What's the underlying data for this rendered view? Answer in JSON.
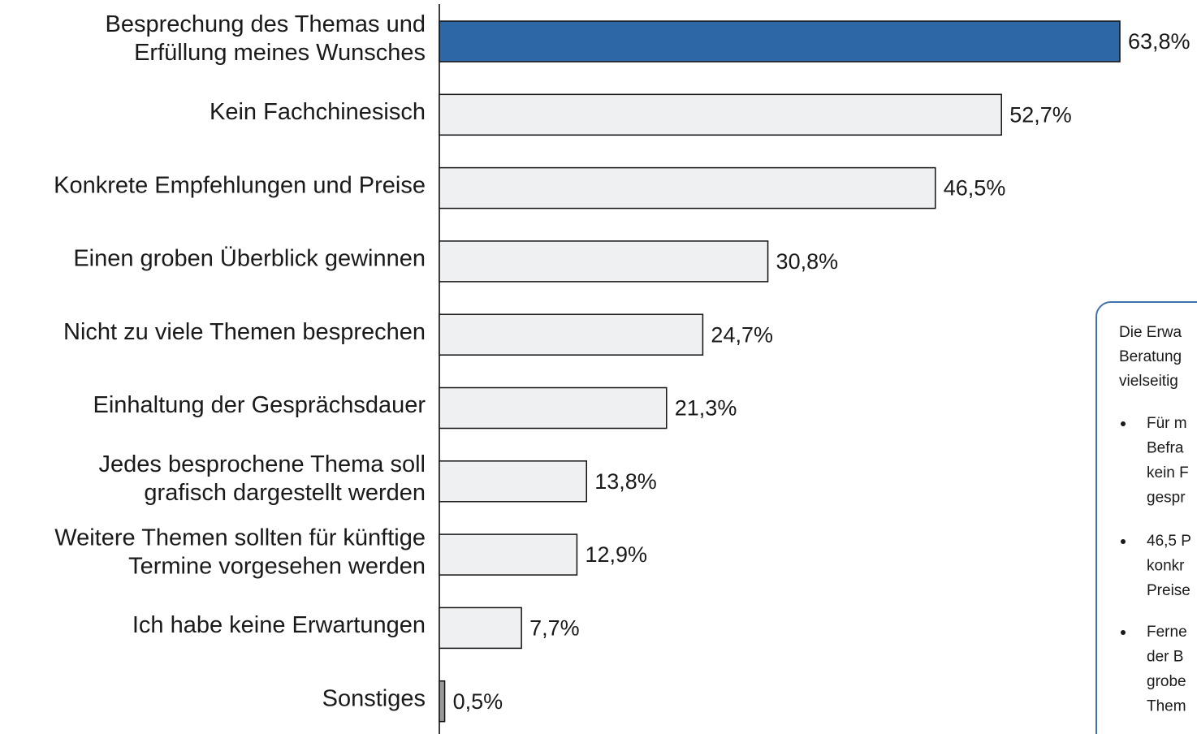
{
  "chart_data": {
    "type": "bar",
    "orientation": "horizontal",
    "categories": [
      [
        "Besprechung des Themas und",
        "Erfüllung meines Wunsches"
      ],
      [
        "Kein Fachchinesisch"
      ],
      [
        "Konkrete Empfehlungen und Preise"
      ],
      [
        "Einen groben Überblick gewinnen"
      ],
      [
        "Nicht zu viele Themen besprechen"
      ],
      [
        "Einhaltung der Gesprächsdauer"
      ],
      [
        "Jedes besprochene Thema soll",
        "grafisch dargestellt werden"
      ],
      [
        "Weitere Themen sollten für künftige",
        "Termine vorgesehen werden"
      ],
      [
        "Ich habe keine Erwartungen"
      ],
      [
        "Sonstiges"
      ]
    ],
    "values": [
      63.8,
      52.7,
      46.5,
      30.8,
      24.7,
      21.3,
      13.8,
      12.9,
      7.7,
      0.5
    ],
    "value_labels": [
      "63,8%",
      "52,7%",
      "46,5%",
      "30,8%",
      "24,7%",
      "21,3%",
      "13,8%",
      "12,9%",
      "7,7%",
      "0,5%"
    ],
    "colors": [
      "#2e67a5",
      "#eef0f1",
      "#eef0f1",
      "#eef0f1",
      "#eef0f1",
      "#eef0f1",
      "#eef0f1",
      "#eef0f1",
      "#eef0f1",
      "#9a9a9a"
    ],
    "annotation": {
      "intro": [
        "Die Erwa",
        "Beratung",
        "vielseitig"
      ],
      "bullets": [
        [
          "Für m",
          "Befra",
          "kein F",
          "gespr"
        ],
        [
          "46,5 P",
          "konkr",
          "Preise"
        ],
        [
          "Ferne",
          "der B",
          "grobe",
          "Them"
        ]
      ]
    }
  }
}
